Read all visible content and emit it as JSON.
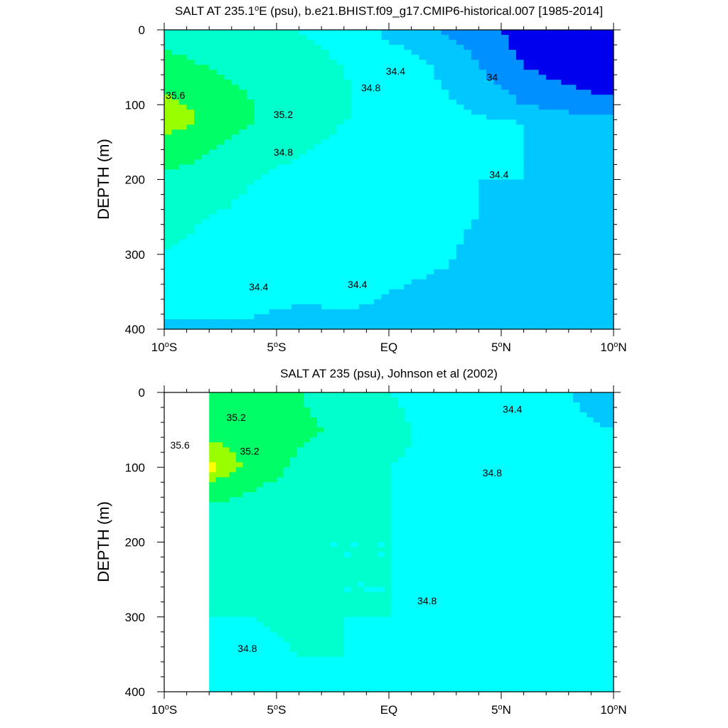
{
  "chart_data": [
    {
      "type": "contour",
      "title_parts": [
        "SALT AT 235.1",
        "o",
        "E (psu), b.e21.BHIST.f09_g17.CMIP6-historical.007 [1985-2014]"
      ],
      "ylabel": "DEPTH (m)",
      "xlabel": "",
      "ylim": [
        0,
        400
      ],
      "y_reversed": true,
      "xlim": [
        -10,
        10
      ],
      "x_ticks": [
        {
          "value": -10,
          "parts": [
            "10",
            "o",
            "S"
          ]
        },
        {
          "value": -5,
          "parts": [
            "5",
            "o",
            "S"
          ]
        },
        {
          "value": 0,
          "parts": [
            "EQ"
          ]
        },
        {
          "value": 5,
          "parts": [
            "5",
            "o",
            "N"
          ]
        },
        {
          "value": 10,
          "parts": [
            "10",
            "o",
            "N"
          ]
        }
      ],
      "y_ticks": [
        "0",
        "100",
        "200",
        "300",
        "400"
      ],
      "data_lon_range": [
        -10,
        10
      ],
      "contour_levels": [
        "34",
        "34.4",
        "34.8",
        "35.2",
        "35.6"
      ],
      "contour_labels": [
        "35.6",
        "35.2",
        "34.8",
        "34.8",
        "34.4",
        "34",
        "34.4",
        "34.4",
        "34.4"
      ],
      "salinity_grid": {
        "lat": [
          -10,
          -8,
          -6,
          -4,
          -2,
          0,
          2,
          4,
          6,
          8,
          10
        ],
        "depth": [
          0,
          50,
          100,
          125,
          150,
          200,
          250,
          300,
          350,
          400
        ],
        "values": [
          [
            35.1,
            35.0,
            34.9,
            34.8,
            34.7,
            34.3,
            34.2,
            34.1,
            33.9,
            33.7,
            33.6
          ],
          [
            35.3,
            35.2,
            35.0,
            34.9,
            34.8,
            34.6,
            34.4,
            34.2,
            34.0,
            33.9,
            33.8
          ],
          [
            35.7,
            35.5,
            35.2,
            34.95,
            34.85,
            34.6,
            34.45,
            34.35,
            34.2,
            34.1,
            34.05
          ],
          [
            35.8,
            35.5,
            35.2,
            34.9,
            34.8,
            34.7,
            34.5,
            34.45,
            34.4,
            34.35,
            34.35
          ],
          [
            35.5,
            35.3,
            35.0,
            34.85,
            34.75,
            34.6,
            34.5,
            34.45,
            34.4,
            34.35,
            34.35
          ],
          [
            35.1,
            35.0,
            34.8,
            34.7,
            34.65,
            34.6,
            34.5,
            34.4,
            34.4,
            34.35,
            34.35
          ],
          [
            34.9,
            34.8,
            34.7,
            34.65,
            34.6,
            34.55,
            34.45,
            34.4,
            34.35,
            34.35,
            34.35
          ],
          [
            34.8,
            34.7,
            34.65,
            34.6,
            34.55,
            34.5,
            34.45,
            34.35,
            34.35,
            34.35,
            34.35
          ],
          [
            34.55,
            34.5,
            34.5,
            34.45,
            34.45,
            34.4,
            34.35,
            34.35,
            34.35,
            34.35,
            34.35
          ],
          [
            34.35,
            34.35,
            34.35,
            34.3,
            34.35,
            34.35,
            34.35,
            34.35,
            34.35,
            34.35,
            34.35
          ]
        ]
      }
    },
    {
      "type": "contour",
      "title_parts": [
        "SALT AT 235 (psu), Johnson et al (2002)"
      ],
      "ylabel": "DEPTH (m)",
      "xlabel": "",
      "ylim": [
        0,
        400
      ],
      "y_reversed": true,
      "xlim": [
        -10,
        10
      ],
      "x_ticks": [
        {
          "value": -10,
          "parts": [
            "10",
            "o",
            "S"
          ]
        },
        {
          "value": -5,
          "parts": [
            "5",
            "o",
            "S"
          ]
        },
        {
          "value": 0,
          "parts": [
            "EQ"
          ]
        },
        {
          "value": 5,
          "parts": [
            "5",
            "o",
            "N"
          ]
        },
        {
          "value": 10,
          "parts": [
            "10",
            "o",
            "N"
          ]
        }
      ],
      "y_ticks": [
        "0",
        "100",
        "200",
        "300",
        "400"
      ],
      "data_lon_range": [
        -8,
        10
      ],
      "contour_levels": [
        "34.4",
        "34.8",
        "35.2",
        "35.6"
      ],
      "contour_labels": [
        "35.2",
        "35.6",
        "35.2",
        "34.4",
        "34.8",
        "34.8",
        "34.8"
      ],
      "salinity_grid": {
        "lat": [
          -8,
          -6,
          -4,
          -2,
          0,
          2,
          4,
          6,
          8,
          10
        ],
        "depth": [
          0,
          50,
          100,
          150,
          200,
          250,
          300,
          350,
          400
        ],
        "values": [
          [
            35.3,
            35.2,
            35.2,
            35.0,
            34.8,
            34.7,
            34.6,
            34.5,
            34.4,
            34.3
          ],
          [
            35.5,
            35.4,
            35.3,
            35.1,
            34.9,
            34.7,
            34.6,
            34.5,
            34.45,
            34.4
          ],
          [
            35.9,
            35.5,
            35.1,
            34.9,
            34.8,
            34.75,
            34.7,
            34.65,
            34.6,
            34.6
          ],
          [
            35.2,
            35.0,
            34.9,
            34.85,
            34.8,
            34.75,
            34.7,
            34.65,
            34.65,
            34.65
          ],
          [
            34.9,
            34.85,
            34.8,
            34.8,
            34.8,
            34.75,
            34.7,
            34.65,
            34.65,
            34.65
          ],
          [
            34.85,
            34.8,
            34.8,
            34.8,
            34.8,
            34.75,
            34.7,
            34.65,
            34.65,
            34.65
          ],
          [
            34.8,
            34.8,
            34.85,
            34.8,
            34.8,
            34.75,
            34.7,
            34.65,
            34.65,
            34.65
          ],
          [
            34.75,
            34.75,
            34.8,
            34.8,
            34.75,
            34.7,
            34.65,
            34.65,
            34.65,
            34.65
          ],
          [
            34.75,
            34.75,
            34.75,
            34.75,
            34.7,
            34.7,
            34.65,
            34.65,
            34.65,
            34.65
          ]
        ]
      }
    }
  ],
  "colors": {
    "below_34": "#0000ee",
    "34_34.4_a": "#0090ff",
    "34_34.4_b": "#00c8ff",
    "34.4_34.8": "#00ffff",
    "34.8_35.2": "#00ffcc",
    "35.2_35.6": "#00ff66",
    "35.6_36.0": "#99ff00",
    "36.0_up": "#ffff00",
    "peak": "#ffd21e"
  }
}
